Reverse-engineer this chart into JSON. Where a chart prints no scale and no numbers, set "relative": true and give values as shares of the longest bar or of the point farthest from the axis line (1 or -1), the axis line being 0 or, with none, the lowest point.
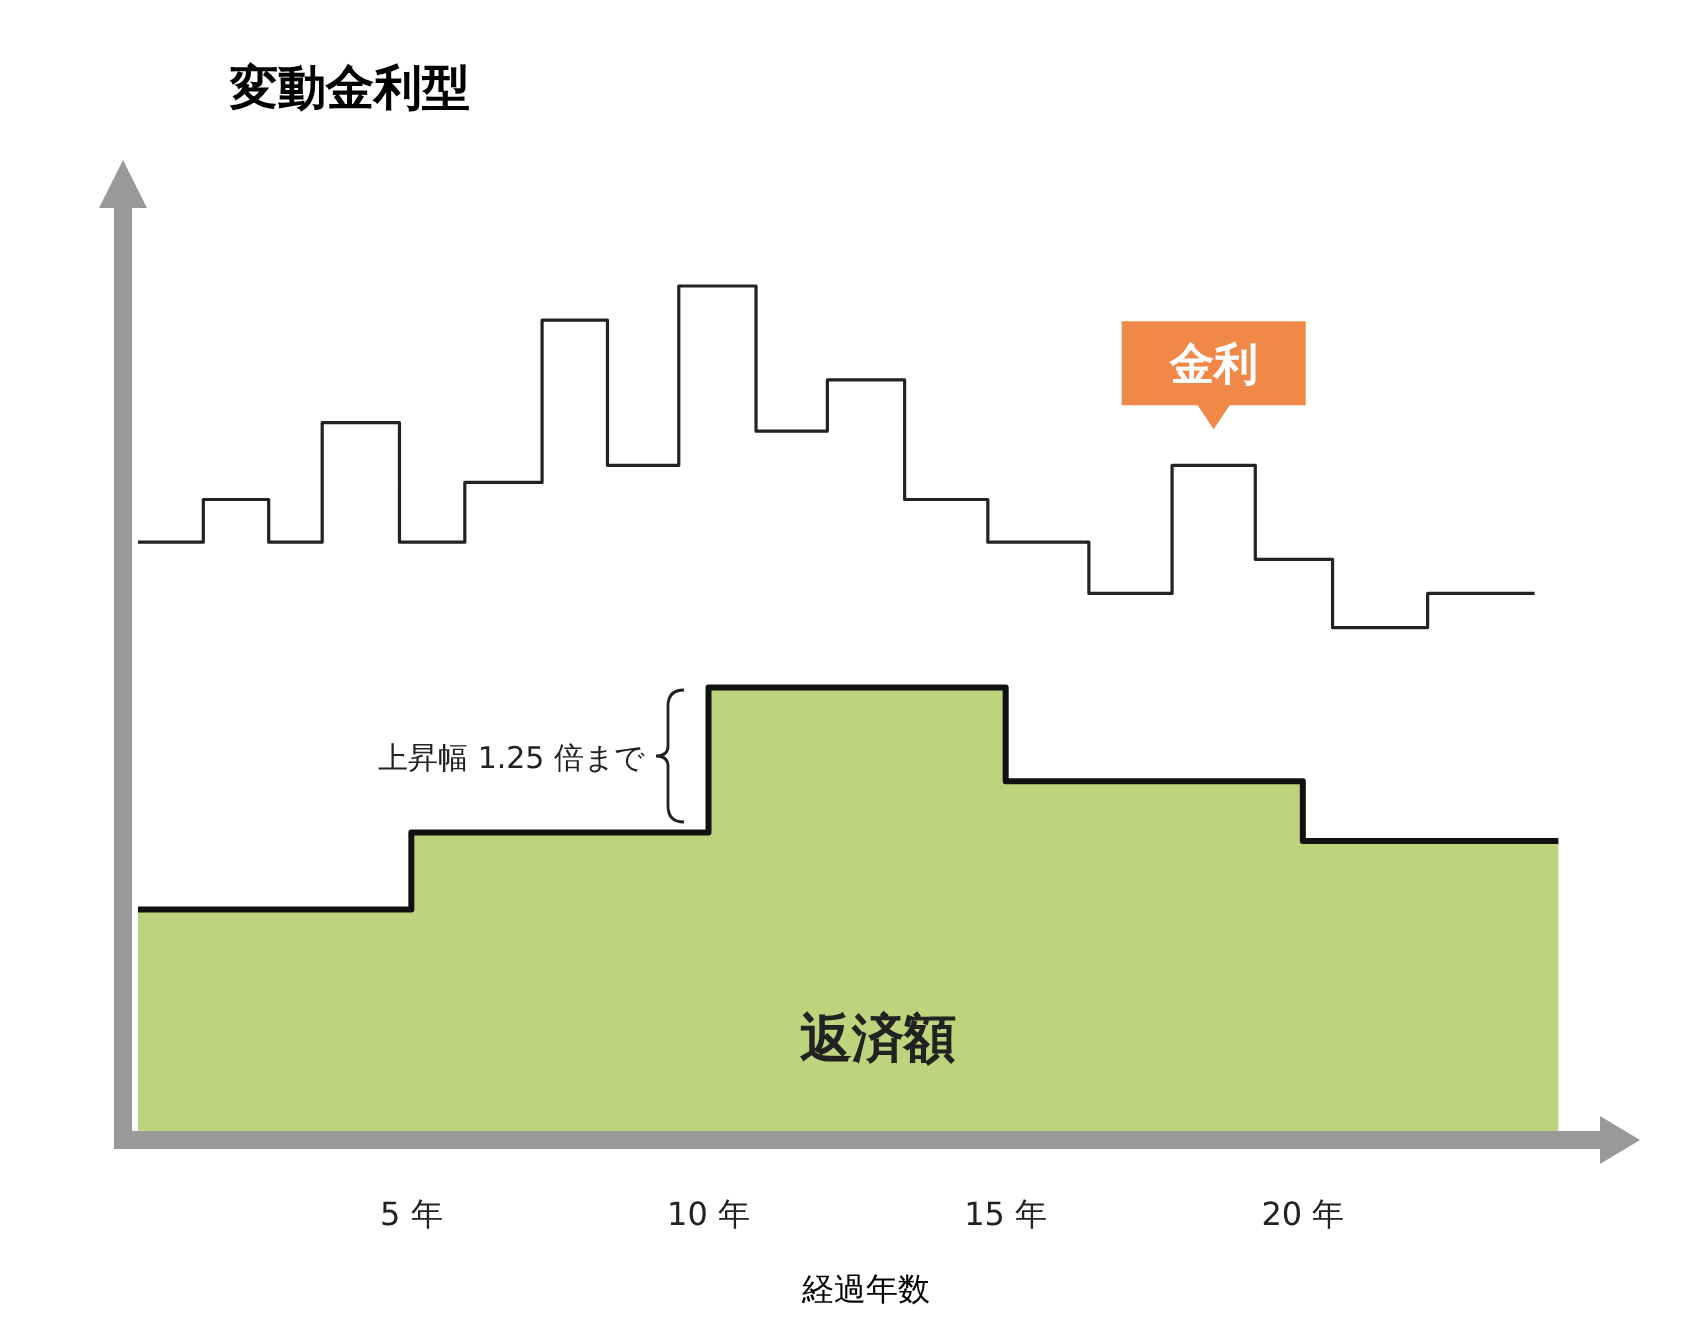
{
  "chart_data": {
    "type": "step",
    "title": "変動金利型",
    "xlabel": "経過年数",
    "relative": true,
    "xlim": [
      0.3,
      25
    ],
    "xticks": [
      {
        "value": 5,
        "label": "5 年"
      },
      {
        "value": 10,
        "label": "10 年"
      },
      {
        "value": 15,
        "label": "15 年"
      },
      {
        "value": 20,
        "label": "20 年"
      }
    ],
    "legend": false,
    "grid": false,
    "series": [
      {
        "name": "金利",
        "type": "step",
        "color": "#222222",
        "x": [
          0.4,
          1.5,
          2.6,
          3.5,
          4.8,
          5.9,
          7.2,
          8.3,
          9.5,
          10.8,
          12,
          13.3,
          14.7,
          16.4,
          17.8,
          19.2,
          20.5,
          22.1,
          23.9
        ],
        "values": [
          0.7,
          0.75,
          0.7,
          0.84,
          0.7,
          0.77,
          0.96,
          0.79,
          1,
          0.83,
          0.89,
          0.75,
          0.7,
          0.64,
          0.79,
          0.68,
          0.6,
          0.64,
          0.64
        ]
      },
      {
        "name": "返済額",
        "type": "area",
        "color": "#bdd37c",
        "x": [
          0.4,
          5,
          10,
          15,
          20,
          24.3
        ],
        "values": [
          0.27,
          0.36,
          0.53,
          0.42,
          0.35,
          0.35
        ]
      }
    ],
    "annotations": [
      "上昇幅 1.25 倍まで"
    ]
  }
}
